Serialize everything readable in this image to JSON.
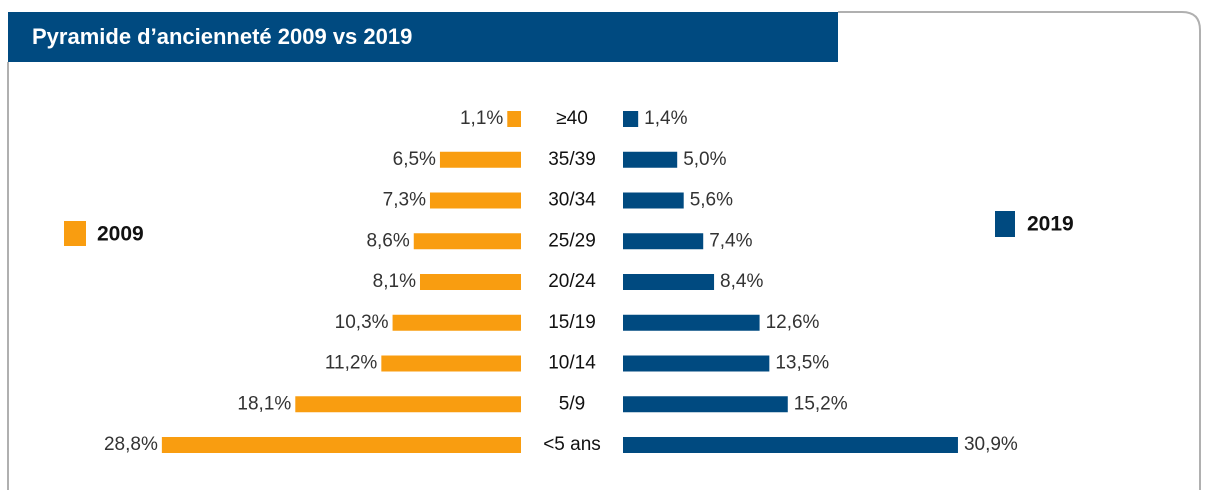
{
  "chart_data": {
    "type": "pyramid",
    "title": "Pyramide d’ancienneté 2009 vs 2019",
    "categories": [
      "≥40",
      "35/39",
      "30/34",
      "25/29",
      "20/24",
      "15/19",
      "10/14",
      "5/9",
      "<5 ans"
    ],
    "series": [
      {
        "name": "2009",
        "color": "#f99d10",
        "values": [
          1.1,
          6.5,
          7.3,
          8.6,
          8.1,
          10.3,
          11.2,
          18.1,
          28.8
        ],
        "value_labels": [
          "1,1%",
          "6,5%",
          "7,3%",
          "8,6%",
          "8,1%",
          "10,3%",
          "11,2%",
          "18,1%",
          "28,8%"
        ]
      },
      {
        "name": "2019",
        "color": "#004a80",
        "values": [
          1.4,
          5.0,
          5.6,
          7.4,
          8.4,
          12.6,
          13.5,
          15.2,
          30.9
        ],
        "value_labels": [
          "1,4%",
          "5,0%",
          "5,6%",
          "7,4%",
          "8,4%",
          "12,6%",
          "13,5%",
          "15,2%",
          "30,9%"
        ]
      }
    ]
  }
}
